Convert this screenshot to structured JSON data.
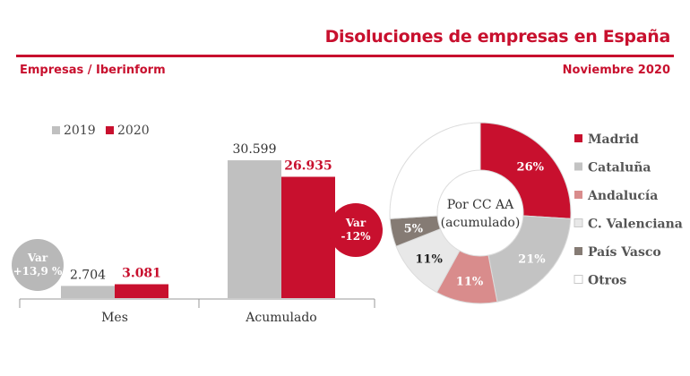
{
  "header": {
    "title": "Disoluciones de empresas en España",
    "subtitle": "Empresas / Iberinform",
    "date": "Noviembre 2020"
  },
  "colors": {
    "accent": "#c8102e",
    "grey": "#c0c0c0",
    "madrid": "#c8102e",
    "cataluna": "#c3c3c3",
    "andalucia": "#d98c8c",
    "valenciana": "#e8e8e8",
    "paisvasco": "#857b74",
    "otros": "#ffffff"
  },
  "chart_data": [
    {
      "type": "bar",
      "categories": [
        "Mes",
        "Acumulado"
      ],
      "series": [
        {
          "name": "2019",
          "values": [
            2704,
            30599
          ],
          "labels": [
            "2.704",
            "30.599"
          ]
        },
        {
          "name": "2020",
          "values": [
            3081,
            26935
          ],
          "labels": [
            "3.081",
            "26.935"
          ]
        }
      ],
      "legend": "top-left",
      "annotations": [
        {
          "category": "Mes",
          "line1": "Var",
          "line2": "+13,9 %"
        },
        {
          "category": "Acumulado",
          "line1": "Var",
          "line2": "-12%"
        }
      ],
      "ylim": [
        0,
        32000
      ],
      "grid": false
    },
    {
      "type": "pie",
      "center_label": [
        "Por CC AA",
        "(acumulado)"
      ],
      "slices": [
        {
          "name": "Madrid",
          "value": 26,
          "label": "26%",
          "color": "#c8102e"
        },
        {
          "name": "Cataluña",
          "value": 21,
          "label": "21%",
          "color": "#c3c3c3"
        },
        {
          "name": "Andalucía",
          "value": 11,
          "label": "11%",
          "color": "#d98c8c"
        },
        {
          "name": "C. Valenciana",
          "value": 11,
          "label": "11%",
          "color": "#e8e8e8"
        },
        {
          "name": "País Vasco",
          "value": 5,
          "label": "5%",
          "color": "#857b74"
        },
        {
          "name": "Otros",
          "value": 26,
          "label": "",
          "color": "#ffffff"
        }
      ],
      "legend": "right"
    }
  ]
}
